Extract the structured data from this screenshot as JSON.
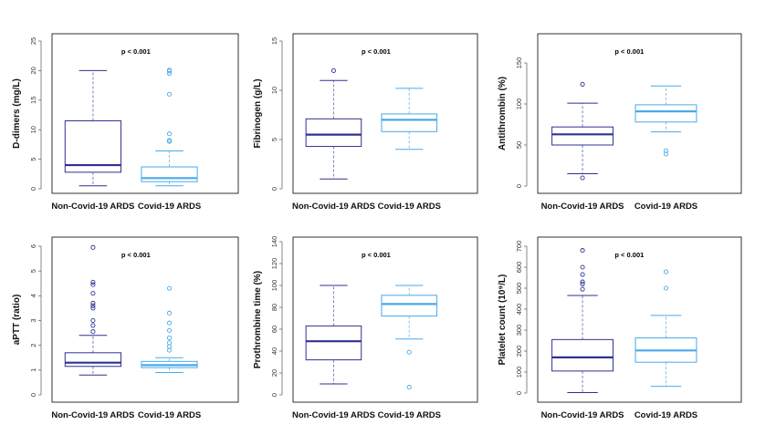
{
  "colors": {
    "non_covid_box": "#2e3192",
    "non_covid_whisker": "#7b7fc4",
    "covid_box": "#4aa9e9",
    "covid_whisker": "#7fc5f0",
    "frame": "#000000",
    "axis": "#555555"
  },
  "chart_data": [
    {
      "type": "boxplot",
      "ylabel": "D-dimers (mg/L)",
      "annotation": "p < 0.001",
      "categories": [
        "Non-Covid-19 ARDS",
        "Covid-19 ARDS"
      ],
      "yticks": [
        0,
        5,
        10,
        15,
        20,
        25
      ],
      "ylim": [
        0,
        25
      ],
      "series": [
        {
          "whisker_low": 0.5,
          "q1": 2.8,
          "median": 4.0,
          "q3": 11.5,
          "whisker_high": 20.0,
          "outliers": []
        },
        {
          "whisker_low": 0.5,
          "q1": 1.2,
          "median": 1.8,
          "q3": 3.7,
          "whisker_high": 6.4,
          "outliers": [
            8.0,
            8.2,
            9.3,
            16.0,
            19.5,
            19.9,
            20.1
          ]
        }
      ]
    },
    {
      "type": "boxplot",
      "ylabel": "Fibrinogen (g/L)",
      "annotation": "p < 0.001",
      "categories": [
        "Non-Covid-19 ARDS",
        "Covid-19 ARDS"
      ],
      "yticks": [
        0,
        5,
        10,
        15
      ],
      "ylim": [
        0,
        15
      ],
      "series": [
        {
          "whisker_low": 1.0,
          "q1": 4.3,
          "median": 5.5,
          "q3": 7.1,
          "whisker_high": 11.0,
          "outliers": [
            12.0
          ]
        },
        {
          "whisker_low": 4.0,
          "q1": 5.8,
          "median": 7.0,
          "q3": 7.6,
          "whisker_high": 10.2,
          "outliers": []
        }
      ]
    },
    {
      "type": "boxplot",
      "ylabel": "Antithrombin (%)",
      "annotation": "p < 0.001",
      "categories": [
        "Non-Covid-19 ARDS",
        "Covid-19 ARDS"
      ],
      "yticks": [
        0,
        50,
        100,
        150
      ],
      "ylim": [
        0,
        150
      ],
      "series": [
        {
          "whisker_low": 15,
          "q1": 50,
          "median": 63,
          "q3": 72,
          "whisker_high": 101,
          "outliers": [
            10,
            124
          ]
        },
        {
          "whisker_low": 66,
          "q1": 78,
          "median": 91,
          "q3": 99,
          "whisker_high": 122,
          "outliers": [
            39,
            43
          ]
        }
      ]
    },
    {
      "type": "boxplot",
      "ylabel": "aPTT (ratio)",
      "annotation": "p < 0.001",
      "categories": [
        "Non-Covid-19 ARDS",
        "Covid-19 ARDS"
      ],
      "yticks": [
        0,
        1,
        2,
        3,
        4,
        5,
        6
      ],
      "ylim": [
        0,
        6
      ],
      "series": [
        {
          "whisker_low": 0.8,
          "q1": 1.15,
          "median": 1.3,
          "q3": 1.7,
          "whisker_high": 2.4,
          "outliers": [
            2.55,
            2.8,
            3.0,
            3.5,
            3.6,
            3.7,
            4.1,
            4.45,
            4.55,
            5.95
          ]
        },
        {
          "whisker_low": 0.9,
          "q1": 1.1,
          "median": 1.2,
          "q3": 1.35,
          "whisker_high": 1.5,
          "outliers": [
            1.8,
            1.95,
            2.1,
            2.3,
            2.6,
            2.9,
            3.3,
            4.3
          ]
        }
      ]
    },
    {
      "type": "boxplot",
      "ylabel": "Prothrombine time (%)",
      "annotation": "p < 0.001",
      "categories": [
        "Non-Covid-19 ARDS",
        "Covid-19 ARDS"
      ],
      "yticks": [
        0,
        20,
        40,
        60,
        80,
        100,
        120,
        140
      ],
      "ylim": [
        0,
        140
      ],
      "series": [
        {
          "whisker_low": 10,
          "q1": 32,
          "median": 49,
          "q3": 63,
          "whisker_high": 100,
          "outliers": []
        },
        {
          "whisker_low": 51,
          "q1": 72,
          "median": 83,
          "q3": 91,
          "whisker_high": 100,
          "outliers": [
            39,
            7
          ]
        }
      ]
    },
    {
      "type": "boxplot",
      "ylabel": "Platelet count (10⁹/L)",
      "annotation": "p < 0.001",
      "categories": [
        "Non-Covid-19 ARDS",
        "Covid-19 ARDS"
      ],
      "yticks": [
        0,
        100,
        200,
        300,
        400,
        500,
        600,
        700
      ],
      "ylim": [
        0,
        700
      ],
      "series": [
        {
          "whisker_low": 2,
          "q1": 105,
          "median": 170,
          "q3": 255,
          "whisker_high": 465,
          "outliers": [
            495,
            520,
            530,
            565,
            600,
            680
          ]
        },
        {
          "whisker_low": 32,
          "q1": 147,
          "median": 203,
          "q3": 263,
          "whisker_high": 370,
          "outliers": [
            500,
            578
          ]
        }
      ]
    }
  ]
}
